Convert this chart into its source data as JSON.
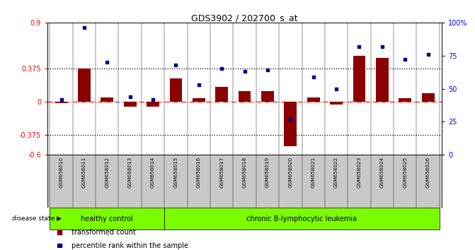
{
  "title": "GDS3902 / 202700_s_at",
  "samples": [
    "GSM658010",
    "GSM658011",
    "GSM658012",
    "GSM658013",
    "GSM658014",
    "GSM658015",
    "GSM658016",
    "GSM658017",
    "GSM658018",
    "GSM658019",
    "GSM658020",
    "GSM658021",
    "GSM658022",
    "GSM658023",
    "GSM658024",
    "GSM658025",
    "GSM658026"
  ],
  "red_bars": [
    -0.01,
    0.38,
    0.05,
    -0.05,
    -0.05,
    0.27,
    0.04,
    0.17,
    0.12,
    0.12,
    -0.5,
    0.05,
    -0.03,
    0.52,
    0.5,
    0.04,
    0.1
  ],
  "blue_dots": [
    42,
    96,
    70,
    44,
    42,
    68,
    53,
    65,
    63,
    64,
    27,
    59,
    50,
    82,
    82,
    72,
    76
  ],
  "ylim_left": [
    -0.6,
    0.9
  ],
  "ylim_right": [
    0,
    100
  ],
  "yticks_left": [
    -0.6,
    -0.375,
    0.0,
    0.375,
    0.9
  ],
  "ytick_labels_left": [
    "-0.6",
    "-0.375",
    "0",
    "0.375",
    "0.9"
  ],
  "yticks_right": [
    0,
    25,
    50,
    75,
    100
  ],
  "ytick_labels_right": [
    "0",
    "25",
    "50",
    "75",
    "100%"
  ],
  "hlines": [
    0.375,
    -0.375
  ],
  "healthy_control_count": 5,
  "healthy_color": "#7CFC00",
  "leukemia_color": "#7CFC00",
  "bar_color": "#8B0000",
  "dot_color": "#00008B",
  "bar_width": 0.55,
  "background_color": "#ffffff",
  "label_bg_color": "#c8c8c8"
}
